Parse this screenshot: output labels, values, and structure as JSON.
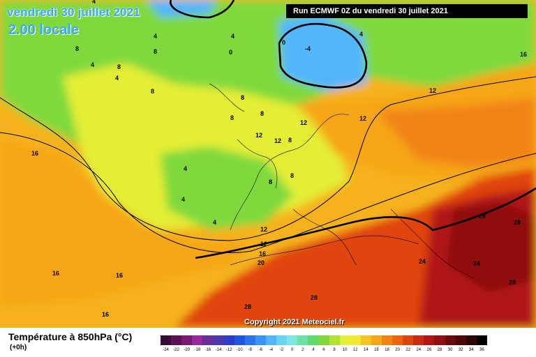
{
  "header": {
    "date": "vendredi 30 juillet 2021",
    "time": "2.00 locale",
    "run": "Run ECMWF 0Z du vendredi 30 juillet 2021"
  },
  "footer": {
    "copyright": "Copyright 2021 Meteociel.fr",
    "legend_title": "Température à 850hPa (°C)",
    "legend_sub": "(+0h)"
  },
  "legend": {
    "values": [
      "-24",
      "-22",
      "-20",
      "-18",
      "-16",
      "-14",
      "-12",
      "-10",
      "-8",
      "-6",
      "-4",
      "-2",
      "0",
      "2",
      "4",
      "6",
      "8",
      "10",
      "12",
      "14",
      "16",
      "18",
      "20",
      "22",
      "24",
      "26",
      "28",
      "30",
      "32",
      "34",
      "36"
    ],
    "colors": [
      "#3c0a38",
      "#5b1255",
      "#7a1a73",
      "#99289a",
      "#6a2d9c",
      "#4938b0",
      "#2c3ec9",
      "#1f55e0",
      "#2a73f2",
      "#3a93fa",
      "#52b6fb",
      "#67d6f4",
      "#7ce8e0",
      "#6ee2a6",
      "#5edb6d",
      "#7fd93c",
      "#b3e233",
      "#e4ee35",
      "#f6e531",
      "#f7c523",
      "#f6a619",
      "#f28413",
      "#ed640f",
      "#e0440d",
      "#cc2a10",
      "#b01813",
      "#8f1010",
      "#6b0c0c",
      "#4b0808",
      "#2e0505",
      "#000000"
    ]
  },
  "map_labels": {
    "isotherms": [
      {
        "text": "4"
      },
      {
        "text": "8"
      },
      {
        "text": "4"
      },
      {
        "text": "4"
      },
      {
        "text": "8"
      },
      {
        "text": "8"
      },
      {
        "text": "0"
      },
      {
        "text": "4"
      },
      {
        "text": "8"
      },
      {
        "text": "4"
      },
      {
        "text": "0"
      },
      {
        "text": "-4"
      },
      {
        "text": "4"
      },
      {
        "text": "16"
      },
      {
        "text": "12"
      },
      {
        "text": "8"
      },
      {
        "text": "8"
      },
      {
        "text": "8"
      },
      {
        "text": "12"
      },
      {
        "text": "12"
      },
      {
        "text": "12"
      },
      {
        "text": "8"
      },
      {
        "text": "12"
      },
      {
        "text": "16"
      },
      {
        "text": "4"
      },
      {
        "text": "4"
      },
      {
        "text": "8"
      },
      {
        "text": "8"
      },
      {
        "text": "4"
      },
      {
        "text": "12"
      },
      {
        "text": "12"
      },
      {
        "text": "16"
      },
      {
        "text": "20"
      },
      {
        "text": "16"
      },
      {
        "text": "16"
      },
      {
        "text": "16"
      },
      {
        "text": "28"
      },
      {
        "text": "28"
      },
      {
        "text": "24"
      },
      {
        "text": "24"
      },
      {
        "text": "28"
      },
      {
        "text": "28"
      },
      {
        "text": "28"
      }
    ]
  }
}
